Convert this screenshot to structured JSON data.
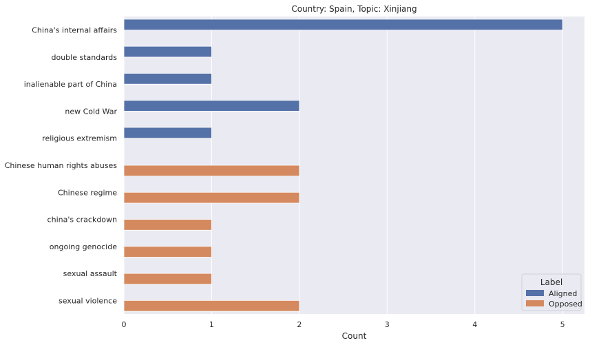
{
  "chart_data": {
    "type": "bar",
    "orientation": "horizontal",
    "title": "Country: Spain, Topic: Xinjiang",
    "xlabel": "Count",
    "ylabel": "",
    "xlim": [
      0,
      5.25
    ],
    "xticks": [
      "0",
      "1",
      "2",
      "3",
      "4",
      "5"
    ],
    "grid": true,
    "legend_position": "bottom-right",
    "legend_title": "Label",
    "categories": [
      "China's internal affairs",
      "double standards",
      "inalienable part of China",
      "new Cold War",
      "religious extremism",
      "Chinese human rights abuses",
      "Chinese regime",
      "china's crackdown",
      "ongoing genocide",
      "sexual assault",
      "sexual violence"
    ],
    "series": [
      {
        "name": "Aligned",
        "color": "#5471a8",
        "values": [
          5,
          1,
          1,
          2,
          1,
          null,
          null,
          null,
          null,
          null,
          null
        ]
      },
      {
        "name": "Opposed",
        "color": "#d4895e",
        "values": [
          null,
          null,
          null,
          null,
          null,
          2,
          2,
          1,
          1,
          1,
          2
        ]
      }
    ],
    "background_color": "#eaeaf2",
    "grid_color": "#ffffff"
  }
}
